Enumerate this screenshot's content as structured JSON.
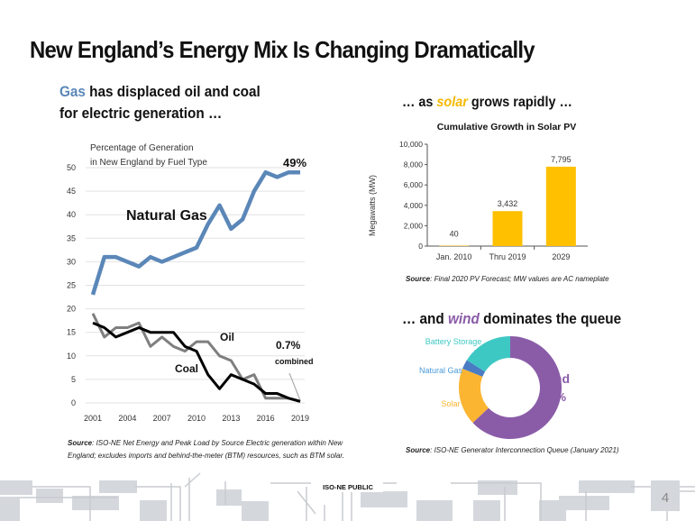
{
  "title": "New England’s Energy Mix Is Changing Dramatically",
  "left_heading": {
    "highlight": "Gas",
    "line1_rest": " has displaced oil and coal",
    "line2": "for electric generation …",
    "highlight_color": "#5b87b8"
  },
  "solar_heading": {
    "prefix": "… as ",
    "highlight": "solar",
    "suffix": " grows rapidly …",
    "highlight_color": "#f5b800"
  },
  "wind_heading": {
    "prefix": "… and ",
    "highlight": "wind",
    "suffix": " dominates the queue",
    "highlight_color": "#8a5ca8"
  },
  "footer": {
    "classification": "ISO-NE PUBLIC",
    "page_number": "4"
  },
  "chart_data": [
    {
      "type": "line",
      "title": "Percentage of Generation\nin New England by Fuel Type",
      "title_lines": [
        "Percentage of Generation",
        "in New England by Fuel Type"
      ],
      "x": [
        2001,
        2002,
        2003,
        2004,
        2005,
        2006,
        2007,
        2008,
        2009,
        2010,
        2011,
        2012,
        2013,
        2014,
        2015,
        2016,
        2017,
        2018,
        2019
      ],
      "x_ticks": [
        "2001",
        "2004",
        "2007",
        "2010",
        "2013",
        "2016",
        "2019"
      ],
      "y_ticks": [
        "0",
        "5",
        "10",
        "15",
        "20",
        "25",
        "30",
        "35",
        "40",
        "45",
        "50"
      ],
      "ylim": [
        0,
        50
      ],
      "grid": true,
      "series": [
        {
          "name": "Natural Gas",
          "color": "#5b87b8",
          "values": [
            23,
            31,
            31,
            30,
            29,
            31,
            30,
            31,
            32,
            33,
            38,
            42,
            37,
            39,
            45,
            49,
            48,
            49,
            49
          ]
        },
        {
          "name": "Oil",
          "color": "#7f7f7f",
          "values": [
            19,
            14,
            16,
            16,
            17,
            12,
            14,
            12,
            11,
            13,
            13,
            10,
            9,
            5,
            6,
            1,
            1,
            1,
            0.4
          ]
        },
        {
          "name": "Coal",
          "color": "#000000",
          "values": [
            17,
            16,
            14,
            15,
            16,
            15,
            15,
            15,
            12,
            11,
            6,
            3,
            6,
            5,
            4,
            2,
            2,
            1,
            0.3
          ]
        }
      ],
      "annotations": {
        "gas_end": "49%",
        "combined_value": "0.7%",
        "combined_label": "combined"
      },
      "source_label": "Source",
      "source_text": ": ISO-NE Net Energy and Peak Load by Source Electric generation within New",
      "source_text2": "England; excludes imports and behind-the-meter (BTM) resources, such as BTM solar."
    },
    {
      "type": "bar",
      "title": "Cumulative Growth in Solar PV",
      "ylabel": "Megawatts (MW)",
      "categories": [
        "Jan. 2010",
        "Thru 2019",
        "2029"
      ],
      "values": [
        40,
        3432,
        7795
      ],
      "data_labels": [
        "40",
        "3,432",
        "7,795"
      ],
      "y_ticks": [
        "0",
        "2,000",
        "4,000",
        "6,000",
        "8,000",
        "10,000"
      ],
      "ylim": [
        0,
        10000
      ],
      "color": "#ffc000",
      "grid": false,
      "source_label": "Source",
      "source_text": ": Final 2020 PV Forecast; MW values are AC nameplate"
    },
    {
      "type": "pie",
      "donut": true,
      "labels": [
        "Wind",
        "Solar",
        "Natural Gas",
        "Battery Storage"
      ],
      "values": [
        63,
        18,
        3,
        16
      ],
      "colors": [
        "#8a5ca8",
        "#fbb531",
        "#4a7cc4",
        "#3ec8c4"
      ],
      "wind_label": "Wind",
      "wind_value": "63%",
      "source_label": "Source",
      "source_text": ": ISO-NE Generator Interconnection Queue (January 2021)"
    }
  ]
}
